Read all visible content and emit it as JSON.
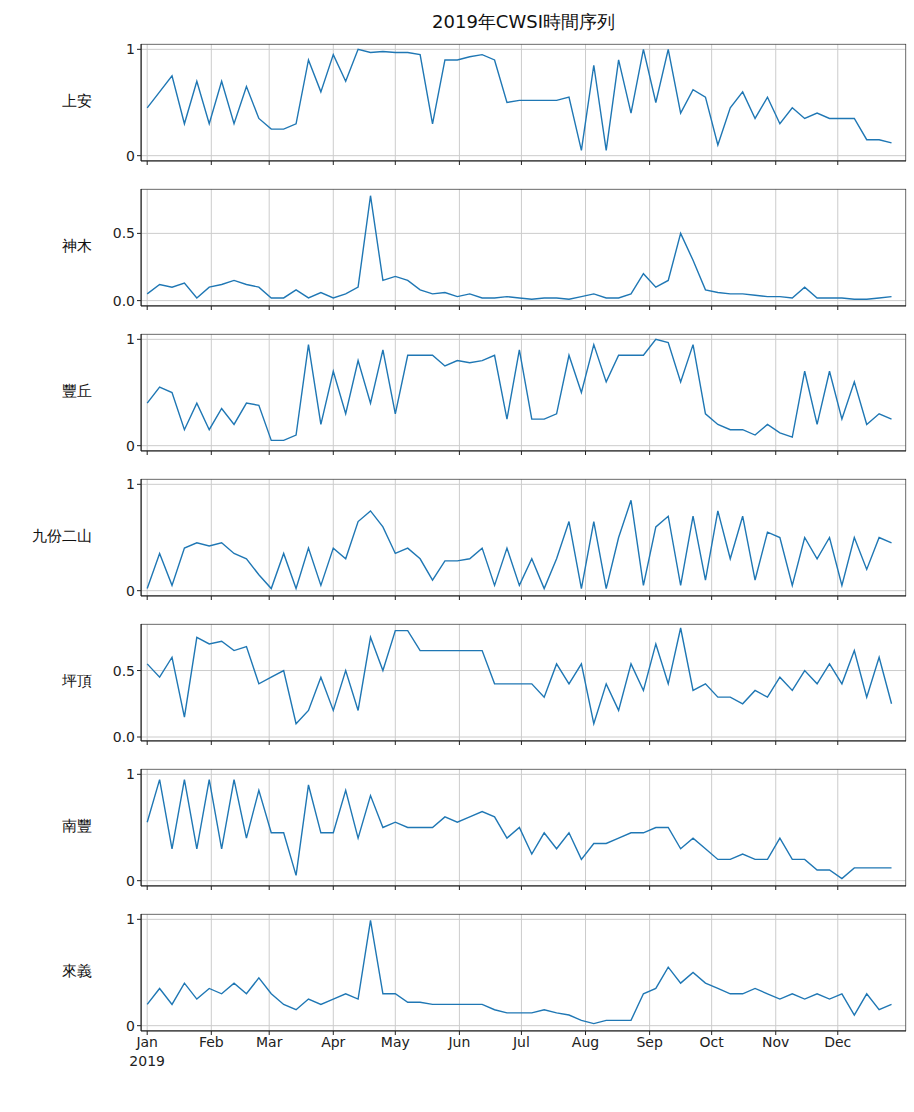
{
  "chart_data": [
    {
      "type": "line",
      "title": "2019年CWSI時間序列",
      "ylabel": "上安",
      "color": "#1f77b4",
      "grid": true,
      "tick_labels": "y",
      "xlim": [
        -2,
        368
      ],
      "xticks": [
        {
          "value": 1,
          "label": "Jan"
        },
        {
          "value": 32,
          "label": "Feb"
        },
        {
          "value": 60,
          "label": "Mar"
        },
        {
          "value": 91,
          "label": "Apr"
        },
        {
          "value": 121,
          "label": "May"
        },
        {
          "value": 152,
          "label": "Jun"
        },
        {
          "value": 182,
          "label": "Jul"
        },
        {
          "value": 213,
          "label": "Aug"
        },
        {
          "value": 244,
          "label": "Sep"
        },
        {
          "value": 274,
          "label": "Oct"
        },
        {
          "value": 305,
          "label": "Nov"
        },
        {
          "value": 335,
          "label": "Dec"
        }
      ],
      "ylim": [
        -0.05,
        1.05
      ],
      "yticks": [
        0,
        1
      ],
      "x": [
        1,
        7,
        13,
        19,
        25,
        31,
        37,
        43,
        49,
        55,
        61,
        67,
        73,
        79,
        85,
        91,
        97,
        103,
        109,
        115,
        121,
        127,
        133,
        139,
        145,
        151,
        157,
        163,
        169,
        175,
        181,
        187,
        193,
        199,
        205,
        211,
        217,
        223,
        229,
        235,
        241,
        247,
        253,
        259,
        265,
        271,
        277,
        283,
        289,
        295,
        301,
        307,
        313,
        319,
        325,
        331,
        337,
        343,
        349,
        355,
        361
      ],
      "values": [
        0.45,
        0.6,
        0.75,
        0.3,
        0.7,
        0.3,
        0.7,
        0.3,
        0.65,
        0.35,
        0.25,
        0.25,
        0.3,
        0.9,
        0.6,
        0.95,
        0.7,
        1.0,
        0.97,
        0.98,
        0.97,
        0.97,
        0.95,
        0.3,
        0.9,
        0.9,
        0.93,
        0.95,
        0.9,
        0.5,
        0.52,
        0.52,
        0.52,
        0.52,
        0.55,
        0.05,
        0.85,
        0.05,
        0.9,
        0.4,
        1.0,
        0.5,
        1.0,
        0.4,
        0.62,
        0.55,
        0.1,
        0.45,
        0.6,
        0.35,
        0.55,
        0.3,
        0.45,
        0.35,
        0.4,
        0.35,
        0.35,
        0.35,
        0.15,
        0.15,
        0.12
      ]
    },
    {
      "type": "line",
      "ylabel": "神木",
      "color": "#1f77b4",
      "grid": true,
      "tick_labels": "y",
      "xlim": [
        -2,
        368
      ],
      "xticks": [
        {
          "value": 1,
          "label": "Jan"
        },
        {
          "value": 32,
          "label": "Feb"
        },
        {
          "value": 60,
          "label": "Mar"
        },
        {
          "value": 91,
          "label": "Apr"
        },
        {
          "value": 121,
          "label": "May"
        },
        {
          "value": 152,
          "label": "Jun"
        },
        {
          "value": 182,
          "label": "Jul"
        },
        {
          "value": 213,
          "label": "Aug"
        },
        {
          "value": 244,
          "label": "Sep"
        },
        {
          "value": 274,
          "label": "Oct"
        },
        {
          "value": 305,
          "label": "Nov"
        },
        {
          "value": 335,
          "label": "Dec"
        }
      ],
      "ylim": [
        -0.04,
        0.83
      ],
      "yticks": [
        {
          "value": 0,
          "label": "0.0"
        },
        0.5
      ],
      "x": [
        1,
        7,
        13,
        19,
        25,
        31,
        37,
        43,
        49,
        55,
        61,
        67,
        73,
        79,
        85,
        91,
        97,
        103,
        109,
        115,
        121,
        127,
        133,
        139,
        145,
        151,
        157,
        163,
        169,
        175,
        181,
        187,
        193,
        199,
        205,
        211,
        217,
        223,
        229,
        235,
        241,
        247,
        253,
        259,
        265,
        271,
        277,
        283,
        289,
        295,
        301,
        307,
        313,
        319,
        325,
        331,
        337,
        343,
        349,
        355,
        361
      ],
      "values": [
        0.05,
        0.12,
        0.1,
        0.13,
        0.02,
        0.1,
        0.12,
        0.15,
        0.12,
        0.1,
        0.02,
        0.02,
        0.08,
        0.02,
        0.06,
        0.02,
        0.05,
        0.1,
        0.78,
        0.15,
        0.18,
        0.15,
        0.08,
        0.05,
        0.06,
        0.03,
        0.05,
        0.02,
        0.02,
        0.03,
        0.02,
        0.01,
        0.02,
        0.02,
        0.01,
        0.03,
        0.05,
        0.02,
        0.02,
        0.05,
        0.2,
        0.1,
        0.15,
        0.5,
        0.3,
        0.08,
        0.06,
        0.05,
        0.05,
        0.04,
        0.03,
        0.03,
        0.02,
        0.1,
        0.02,
        0.02,
        0.02,
        0.01,
        0.01,
        0.02,
        0.03
      ]
    },
    {
      "type": "line",
      "ylabel": "豐丘",
      "color": "#1f77b4",
      "grid": true,
      "tick_labels": "y",
      "xlim": [
        -2,
        368
      ],
      "xticks": [
        {
          "value": 1,
          "label": "Jan"
        },
        {
          "value": 32,
          "label": "Feb"
        },
        {
          "value": 60,
          "label": "Mar"
        },
        {
          "value": 91,
          "label": "Apr"
        },
        {
          "value": 121,
          "label": "May"
        },
        {
          "value": 152,
          "label": "Jun"
        },
        {
          "value": 182,
          "label": "Jul"
        },
        {
          "value": 213,
          "label": "Aug"
        },
        {
          "value": 244,
          "label": "Sep"
        },
        {
          "value": 274,
          "label": "Oct"
        },
        {
          "value": 305,
          "label": "Nov"
        },
        {
          "value": 335,
          "label": "Dec"
        }
      ],
      "ylim": [
        -0.05,
        1.05
      ],
      "yticks": [
        0,
        1
      ],
      "x": [
        1,
        7,
        13,
        19,
        25,
        31,
        37,
        43,
        49,
        55,
        61,
        67,
        73,
        79,
        85,
        91,
        97,
        103,
        109,
        115,
        121,
        127,
        133,
        139,
        145,
        151,
        157,
        163,
        169,
        175,
        181,
        187,
        193,
        199,
        205,
        211,
        217,
        223,
        229,
        235,
        241,
        247,
        253,
        259,
        265,
        271,
        277,
        283,
        289,
        295,
        301,
        307,
        313,
        319,
        325,
        331,
        337,
        343,
        349,
        355,
        361
      ],
      "values": [
        0.4,
        0.55,
        0.5,
        0.15,
        0.4,
        0.15,
        0.35,
        0.2,
        0.4,
        0.38,
        0.05,
        0.05,
        0.1,
        0.95,
        0.2,
        0.7,
        0.3,
        0.8,
        0.4,
        0.9,
        0.3,
        0.85,
        0.85,
        0.85,
        0.75,
        0.8,
        0.78,
        0.8,
        0.85,
        0.25,
        0.9,
        0.25,
        0.25,
        0.3,
        0.85,
        0.5,
        0.95,
        0.6,
        0.85,
        0.85,
        0.85,
        1.0,
        0.97,
        0.6,
        0.95,
        0.3,
        0.2,
        0.15,
        0.15,
        0.1,
        0.2,
        0.12,
        0.08,
        0.7,
        0.2,
        0.7,
        0.25,
        0.6,
        0.2,
        0.3,
        0.25
      ]
    },
    {
      "type": "line",
      "ylabel": "九份二山",
      "color": "#1f77b4",
      "grid": true,
      "tick_labels": "y",
      "xlim": [
        -2,
        368
      ],
      "xticks": [
        {
          "value": 1,
          "label": "Jan"
        },
        {
          "value": 32,
          "label": "Feb"
        },
        {
          "value": 60,
          "label": "Mar"
        },
        {
          "value": 91,
          "label": "Apr"
        },
        {
          "value": 121,
          "label": "May"
        },
        {
          "value": 152,
          "label": "Jun"
        },
        {
          "value": 182,
          "label": "Jul"
        },
        {
          "value": 213,
          "label": "Aug"
        },
        {
          "value": 244,
          "label": "Sep"
        },
        {
          "value": 274,
          "label": "Oct"
        },
        {
          "value": 305,
          "label": "Nov"
        },
        {
          "value": 335,
          "label": "Dec"
        }
      ],
      "ylim": [
        -0.05,
        1.05
      ],
      "yticks": [
        0,
        1
      ],
      "x": [
        1,
        7,
        13,
        19,
        25,
        31,
        37,
        43,
        49,
        55,
        61,
        67,
        73,
        79,
        85,
        91,
        97,
        103,
        109,
        115,
        121,
        127,
        133,
        139,
        145,
        151,
        157,
        163,
        169,
        175,
        181,
        187,
        193,
        199,
        205,
        211,
        217,
        223,
        229,
        235,
        241,
        247,
        253,
        259,
        265,
        271,
        277,
        283,
        289,
        295,
        301,
        307,
        313,
        319,
        325,
        331,
        337,
        343,
        349,
        355,
        361
      ],
      "values": [
        0.02,
        0.35,
        0.05,
        0.4,
        0.45,
        0.42,
        0.45,
        0.35,
        0.3,
        0.15,
        0.02,
        0.35,
        0.02,
        0.4,
        0.05,
        0.4,
        0.3,
        0.65,
        0.75,
        0.6,
        0.35,
        0.4,
        0.3,
        0.1,
        0.28,
        0.28,
        0.3,
        0.4,
        0.05,
        0.4,
        0.05,
        0.3,
        0.02,
        0.3,
        0.65,
        0.02,
        0.65,
        0.02,
        0.5,
        0.85,
        0.05,
        0.6,
        0.7,
        0.05,
        0.7,
        0.1,
        0.75,
        0.3,
        0.7,
        0.1,
        0.55,
        0.5,
        0.05,
        0.5,
        0.3,
        0.5,
        0.05,
        0.5,
        0.2,
        0.5,
        0.45
      ]
    },
    {
      "type": "line",
      "ylabel": "坪頂",
      "color": "#1f77b4",
      "grid": true,
      "tick_labels": "y",
      "xlim": [
        -2,
        368
      ],
      "xticks": [
        {
          "value": 1,
          "label": "Jan"
        },
        {
          "value": 32,
          "label": "Feb"
        },
        {
          "value": 60,
          "label": "Mar"
        },
        {
          "value": 91,
          "label": "Apr"
        },
        {
          "value": 121,
          "label": "May"
        },
        {
          "value": 152,
          "label": "Jun"
        },
        {
          "value": 182,
          "label": "Jul"
        },
        {
          "value": 213,
          "label": "Aug"
        },
        {
          "value": 244,
          "label": "Sep"
        },
        {
          "value": 274,
          "label": "Oct"
        },
        {
          "value": 305,
          "label": "Nov"
        },
        {
          "value": 335,
          "label": "Dec"
        }
      ],
      "ylim": [
        -0.03,
        0.85
      ],
      "yticks": [
        {
          "value": 0,
          "label": "0.0"
        },
        0.5
      ],
      "x": [
        1,
        7,
        13,
        19,
        25,
        31,
        37,
        43,
        49,
        55,
        61,
        67,
        73,
        79,
        85,
        91,
        97,
        103,
        109,
        115,
        121,
        127,
        133,
        139,
        145,
        151,
        157,
        163,
        169,
        175,
        181,
        187,
        193,
        199,
        205,
        211,
        217,
        223,
        229,
        235,
        241,
        247,
        253,
        259,
        265,
        271,
        277,
        283,
        289,
        295,
        301,
        307,
        313,
        319,
        325,
        331,
        337,
        343,
        349,
        355,
        361
      ],
      "values": [
        0.55,
        0.45,
        0.6,
        0.15,
        0.75,
        0.7,
        0.72,
        0.65,
        0.68,
        0.4,
        0.45,
        0.5,
        0.1,
        0.2,
        0.45,
        0.2,
        0.5,
        0.2,
        0.75,
        0.5,
        0.8,
        0.8,
        0.65,
        0.65,
        0.65,
        0.65,
        0.65,
        0.65,
        0.4,
        0.4,
        0.4,
        0.4,
        0.3,
        0.55,
        0.4,
        0.55,
        0.1,
        0.4,
        0.2,
        0.55,
        0.35,
        0.7,
        0.4,
        0.82,
        0.35,
        0.4,
        0.3,
        0.3,
        0.25,
        0.35,
        0.3,
        0.45,
        0.35,
        0.5,
        0.4,
        0.55,
        0.4,
        0.65,
        0.3,
        0.6,
        0.25
      ]
    },
    {
      "type": "line",
      "ylabel": "南豐",
      "color": "#1f77b4",
      "grid": true,
      "tick_labels": "y",
      "xlim": [
        -2,
        368
      ],
      "xticks": [
        {
          "value": 1,
          "label": "Jan"
        },
        {
          "value": 32,
          "label": "Feb"
        },
        {
          "value": 60,
          "label": "Mar"
        },
        {
          "value": 91,
          "label": "Apr"
        },
        {
          "value": 121,
          "label": "May"
        },
        {
          "value": 152,
          "label": "Jun"
        },
        {
          "value": 182,
          "label": "Jul"
        },
        {
          "value": 213,
          "label": "Aug"
        },
        {
          "value": 244,
          "label": "Sep"
        },
        {
          "value": 274,
          "label": "Oct"
        },
        {
          "value": 305,
          "label": "Nov"
        },
        {
          "value": 335,
          "label": "Dec"
        }
      ],
      "ylim": [
        -0.05,
        1.05
      ],
      "yticks": [
        0,
        1
      ],
      "x": [
        1,
        7,
        13,
        19,
        25,
        31,
        37,
        43,
        49,
        55,
        61,
        67,
        73,
        79,
        85,
        91,
        97,
        103,
        109,
        115,
        121,
        127,
        133,
        139,
        145,
        151,
        157,
        163,
        169,
        175,
        181,
        187,
        193,
        199,
        205,
        211,
        217,
        223,
        229,
        235,
        241,
        247,
        253,
        259,
        265,
        271,
        277,
        283,
        289,
        295,
        301,
        307,
        313,
        319,
        325,
        331,
        337,
        343,
        349,
        355,
        361
      ],
      "values": [
        0.55,
        0.95,
        0.3,
        0.95,
        0.3,
        0.95,
        0.3,
        0.95,
        0.4,
        0.85,
        0.45,
        0.45,
        0.05,
        0.9,
        0.45,
        0.45,
        0.85,
        0.4,
        0.8,
        0.5,
        0.55,
        0.5,
        0.5,
        0.5,
        0.6,
        0.55,
        0.6,
        0.65,
        0.6,
        0.4,
        0.5,
        0.25,
        0.45,
        0.3,
        0.45,
        0.2,
        0.35,
        0.35,
        0.4,
        0.45,
        0.45,
        0.5,
        0.5,
        0.3,
        0.4,
        0.3,
        0.2,
        0.2,
        0.25,
        0.2,
        0.2,
        0.4,
        0.2,
        0.2,
        0.1,
        0.1,
        0.02,
        0.12,
        0.12,
        0.12,
        0.12
      ]
    },
    {
      "type": "line",
      "ylabel": "來義",
      "xlabel": "2019",
      "color": "#1f77b4",
      "grid": true,
      "xlim": [
        -2,
        368
      ],
      "xticks": [
        {
          "value": 1,
          "label": "Jan"
        },
        {
          "value": 32,
          "label": "Feb"
        },
        {
          "value": 60,
          "label": "Mar"
        },
        {
          "value": 91,
          "label": "Apr"
        },
        {
          "value": 121,
          "label": "May"
        },
        {
          "value": 152,
          "label": "Jun"
        },
        {
          "value": 182,
          "label": "Jul"
        },
        {
          "value": 213,
          "label": "Aug"
        },
        {
          "value": 244,
          "label": "Sep"
        },
        {
          "value": 274,
          "label": "Oct"
        },
        {
          "value": 305,
          "label": "Nov"
        },
        {
          "value": 335,
          "label": "Dec"
        }
      ],
      "ylim": [
        -0.05,
        1.05
      ],
      "yticks": [
        0,
        1
      ],
      "x": [
        1,
        7,
        13,
        19,
        25,
        31,
        37,
        43,
        49,
        55,
        61,
        67,
        73,
        79,
        85,
        91,
        97,
        103,
        109,
        115,
        121,
        127,
        133,
        139,
        145,
        151,
        157,
        163,
        169,
        175,
        181,
        187,
        193,
        199,
        205,
        211,
        217,
        223,
        229,
        235,
        241,
        247,
        253,
        259,
        265,
        271,
        277,
        283,
        289,
        295,
        301,
        307,
        313,
        319,
        325,
        331,
        337,
        343,
        349,
        355,
        361
      ],
      "values": [
        0.2,
        0.35,
        0.2,
        0.4,
        0.25,
        0.35,
        0.3,
        0.4,
        0.3,
        0.45,
        0.3,
        0.2,
        0.15,
        0.25,
        0.2,
        0.25,
        0.3,
        0.25,
        0.99,
        0.3,
        0.3,
        0.22,
        0.22,
        0.2,
        0.2,
        0.2,
        0.2,
        0.2,
        0.15,
        0.12,
        0.12,
        0.12,
        0.15,
        0.12,
        0.1,
        0.05,
        0.02,
        0.05,
        0.05,
        0.05,
        0.3,
        0.35,
        0.55,
        0.4,
        0.5,
        0.4,
        0.35,
        0.3,
        0.3,
        0.35,
        0.3,
        0.25,
        0.3,
        0.25,
        0.3,
        0.25,
        0.3,
        0.1,
        0.3,
        0.15,
        0.2
      ]
    }
  ]
}
